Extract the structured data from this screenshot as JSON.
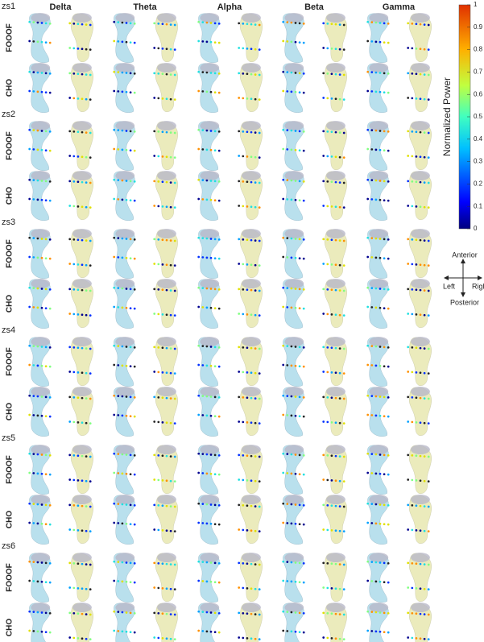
{
  "figure": {
    "bands": [
      "Delta",
      "Theta",
      "Alpha",
      "Beta",
      "Gamma"
    ],
    "subjects": [
      "zs1",
      "zs2",
      "zs3",
      "zs4",
      "zs5",
      "zs6"
    ],
    "methods": [
      "FOOOF",
      "CHO"
    ],
    "colorbar": {
      "label": "Normalized Power",
      "ticks": [
        0,
        0.1,
        0.2,
        0.3,
        0.4,
        0.5,
        0.6,
        0.7,
        0.8,
        0.9,
        1
      ],
      "lim": [
        0,
        1
      ]
    },
    "compass": {
      "up": "Anterior",
      "down": "Posterior",
      "left": "Left",
      "right": "Right"
    }
  }
}
